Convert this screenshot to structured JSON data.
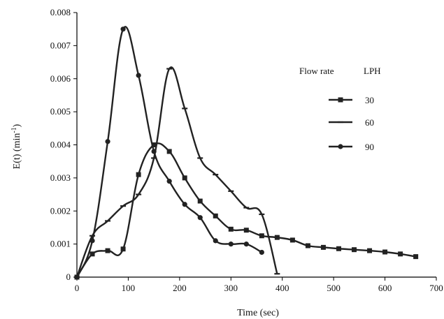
{
  "chart_data": {
    "type": "line",
    "title": "",
    "xlabel": "Time (sec)",
    "ylabel": "E(t)  (min",
    "ylabel_sup": "-1",
    "ylabel_close": ")",
    "xlim": [
      0,
      700
    ],
    "ylim": [
      0,
      0.008
    ],
    "x_ticks": [
      "0",
      "100",
      "200",
      "300",
      "400",
      "500",
      "600",
      "700"
    ],
    "y_ticks": [
      "0",
      "0.001",
      "0.002",
      "0.003",
      "0.004",
      "0.005",
      "0.006",
      "0.007",
      "0.008"
    ],
    "grid": false,
    "legend": {
      "placement": "top-right",
      "title_left": "Flow rate",
      "title_right": "LPH"
    },
    "colors": {
      "line": "#222222",
      "axis": "#000000"
    },
    "series": [
      {
        "name": "30",
        "marker": "square",
        "x": [
          0,
          30,
          60,
          90,
          120,
          150,
          180,
          210,
          240,
          270,
          300,
          330,
          360,
          390,
          420,
          450,
          480,
          510,
          540,
          570,
          600,
          630,
          660
        ],
        "y": [
          0,
          0.0007,
          0.0008,
          0.00085,
          0.0031,
          0.004,
          0.0038,
          0.003,
          0.0023,
          0.00185,
          0.00145,
          0.00142,
          0.00125,
          0.0012,
          0.00112,
          0.00095,
          0.0009,
          0.00086,
          0.00083,
          0.0008,
          0.00076,
          0.0007,
          0.00062
        ]
      },
      {
        "name": "60",
        "marker": "dash",
        "x": [
          0,
          30,
          60,
          90,
          120,
          150,
          180,
          210,
          240,
          270,
          300,
          330,
          360,
          390
        ],
        "y": [
          0,
          0.00125,
          0.0017,
          0.00215,
          0.0025,
          0.0036,
          0.0063,
          0.0051,
          0.0036,
          0.0031,
          0.0026,
          0.0021,
          0.0019,
          0.0001
        ]
      },
      {
        "name": "90",
        "marker": "circle",
        "x": [
          0,
          30,
          60,
          90,
          120,
          150,
          180,
          210,
          240,
          270,
          300,
          330,
          360
        ],
        "y": [
          0,
          0.0011,
          0.0041,
          0.0075,
          0.0061,
          0.0038,
          0.0029,
          0.0022,
          0.0018,
          0.0011,
          0.001,
          0.001,
          0.00075
        ]
      }
    ]
  }
}
